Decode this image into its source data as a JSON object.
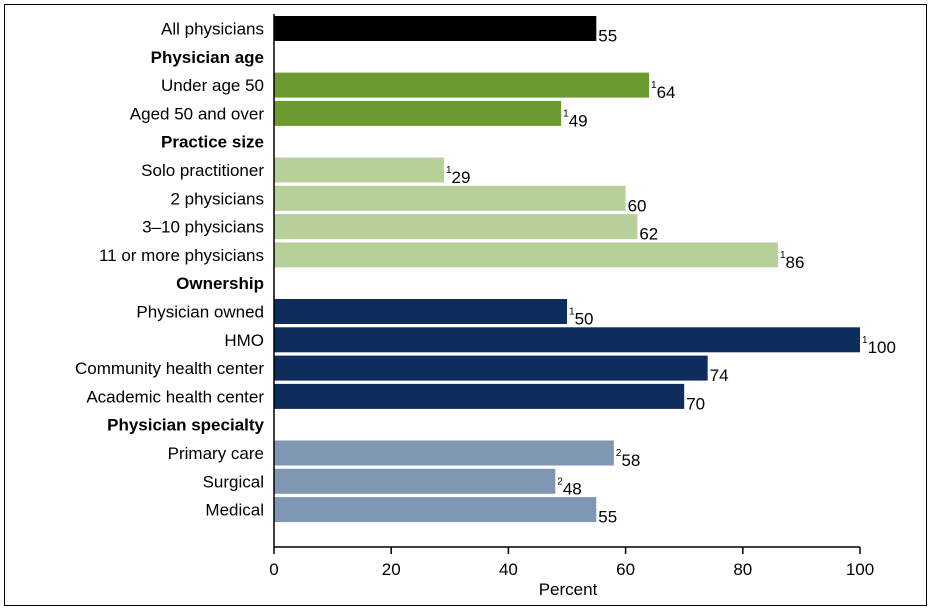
{
  "chart_data": {
    "type": "bar",
    "orientation": "horizontal",
    "xlabel": "Percent",
    "xlim": [
      0,
      100
    ],
    "xticks": [
      "0",
      "20",
      "40",
      "60",
      "80",
      "100"
    ],
    "grid": false,
    "rows": [
      {
        "kind": "bar",
        "label": "All physicians",
        "value": 55,
        "value_label": "55",
        "note": "",
        "color": "#000000"
      },
      {
        "kind": "header",
        "label": "Physician age"
      },
      {
        "kind": "bar",
        "label": "Under age 50",
        "value": 64,
        "value_label": "64",
        "note": "1",
        "color": "#6b9a2f"
      },
      {
        "kind": "bar",
        "label": "Aged 50 and over",
        "value": 49,
        "value_label": "49",
        "note": "1",
        "color": "#6b9a2f"
      },
      {
        "kind": "header",
        "label": "Practice size"
      },
      {
        "kind": "bar",
        "label": "Solo practitioner",
        "value": 29,
        "value_label": "29",
        "note": "1",
        "color": "#b7d09a"
      },
      {
        "kind": "bar",
        "label": "2 physicians",
        "value": 60,
        "value_label": "60",
        "note": "",
        "color": "#b7d09a"
      },
      {
        "kind": "bar",
        "label": "3–10 physicians",
        "value": 62,
        "value_label": "62",
        "note": "",
        "color": "#b7d09a"
      },
      {
        "kind": "bar",
        "label": "11 or more physicians",
        "value": 86,
        "value_label": "86",
        "note": "1",
        "color": "#b7d09a"
      },
      {
        "kind": "header",
        "label": "Ownership"
      },
      {
        "kind": "bar",
        "label": "Physician owned",
        "value": 50,
        "value_label": "50",
        "note": "1",
        "color": "#0e2d5c"
      },
      {
        "kind": "bar",
        "label": "HMO",
        "value": 100,
        "value_label": "100",
        "note": "1",
        "color": "#0e2d5c"
      },
      {
        "kind": "bar",
        "label": "Community health center",
        "value": 74,
        "value_label": "74",
        "note": "",
        "color": "#0e2d5c"
      },
      {
        "kind": "bar",
        "label": "Academic health center",
        "value": 70,
        "value_label": "70",
        "note": "",
        "color": "#0e2d5c"
      },
      {
        "kind": "header",
        "label": "Physician specialty"
      },
      {
        "kind": "bar",
        "label": "Primary care",
        "value": 58,
        "value_label": "58",
        "note": "2",
        "color": "#8097b3"
      },
      {
        "kind": "bar",
        "label": "Surgical",
        "value": 48,
        "value_label": "48",
        "note": "2",
        "color": "#8097b3"
      },
      {
        "kind": "bar",
        "label": "Medical",
        "value": 55,
        "value_label": "55",
        "note": "",
        "color": "#8097b3"
      }
    ]
  }
}
